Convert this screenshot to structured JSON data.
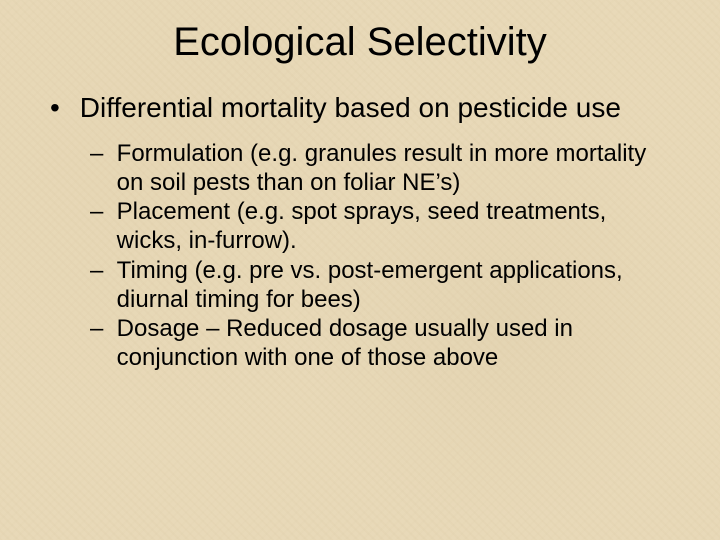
{
  "slide": {
    "title": "Ecological Selectivity",
    "background_color": "#e8d9b8",
    "text_color": "#000000",
    "title_fontsize": 40,
    "level1_fontsize": 28,
    "level2_fontsize": 24,
    "font_family": "Arial",
    "bullet_symbol": "•",
    "dash_symbol": "–",
    "level1": {
      "text": "Differential mortality based on pesticide use"
    },
    "level2_items": [
      "Formulation (e.g. granules result in more mortality on soil pests than on foliar NE’s)",
      "Placement (e.g. spot sprays, seed treatments, wicks, in-furrow).",
      "Timing (e.g. pre vs. post-emergent applications, diurnal timing for bees)",
      "Dosage – Reduced dosage usually used in conjunction with one of those above"
    ]
  }
}
